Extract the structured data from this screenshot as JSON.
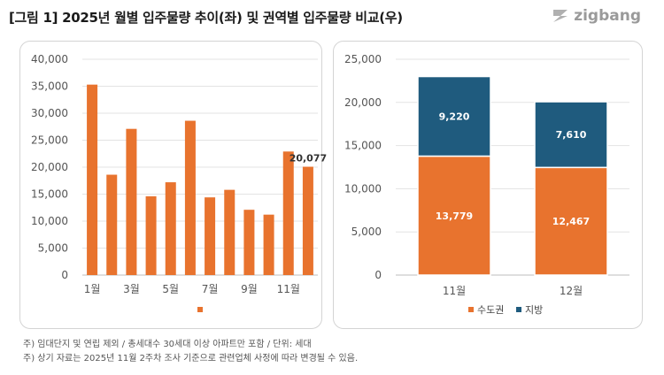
{
  "title": "[그림 1] 2025년 월별 입주물량 추이(좌) 및 권역별 입주물량 비교(우)",
  "logo_text": "zigbang",
  "notes": [
    "주) 임대단지 및 연립 제외 / 총세대수 30세대 이상 아파트만 포함 / 단위: 세대",
    "주) 상기 자료는 2025년 11월 2주차 조사 기준으로 관련업체 사정에 따라 변경될 수 있음."
  ],
  "colors": {
    "orange": "#E8732E",
    "navy": "#1F5B7E",
    "grid": "#e3e3e3"
  },
  "chart_data": [
    {
      "type": "bar",
      "categories": [
        "1월",
        "2월",
        "3월",
        "4월",
        "5월",
        "6월",
        "7월",
        "8월",
        "9월",
        "10월",
        "11월",
        "12월"
      ],
      "x_tick_labels": [
        "1월",
        "",
        "3월",
        "",
        "5월",
        "",
        "7월",
        "",
        "9월",
        "",
        "11월",
        ""
      ],
      "values": [
        35300,
        18600,
        27100,
        14600,
        17200,
        28600,
        14400,
        15800,
        12100,
        11200,
        22900,
        20077
      ],
      "data_labels": [
        "",
        "",
        "",
        "",
        "",
        "",
        "",
        "",
        "",
        "",
        "",
        "20,077"
      ],
      "ylim": [
        0,
        40000
      ],
      "yticks": [
        0,
        5000,
        10000,
        15000,
        20000,
        25000,
        30000,
        35000,
        40000
      ],
      "ytick_labels": [
        "0",
        "5,000",
        "10,000",
        "15,000",
        "20,000",
        "25,000",
        "30,000",
        "35,000",
        "40,000"
      ],
      "grid": true,
      "legend": "bottom"
    },
    {
      "type": "bar",
      "stacked": true,
      "categories": [
        "11월",
        "12월"
      ],
      "series": [
        {
          "name": "수도권",
          "values": [
            13779,
            12467
          ],
          "labels": [
            "13,779",
            "12,467"
          ]
        },
        {
          "name": "지방",
          "values": [
            9220,
            7610
          ],
          "labels": [
            "9,220",
            "7,610"
          ]
        }
      ],
      "ylim": [
        0,
        25000
      ],
      "yticks": [
        0,
        5000,
        10000,
        15000,
        20000,
        25000
      ],
      "ytick_labels": [
        "0",
        "5,000",
        "10,000",
        "15,000",
        "20,000",
        "25,000"
      ],
      "grid": true,
      "legend": "bottom"
    }
  ]
}
